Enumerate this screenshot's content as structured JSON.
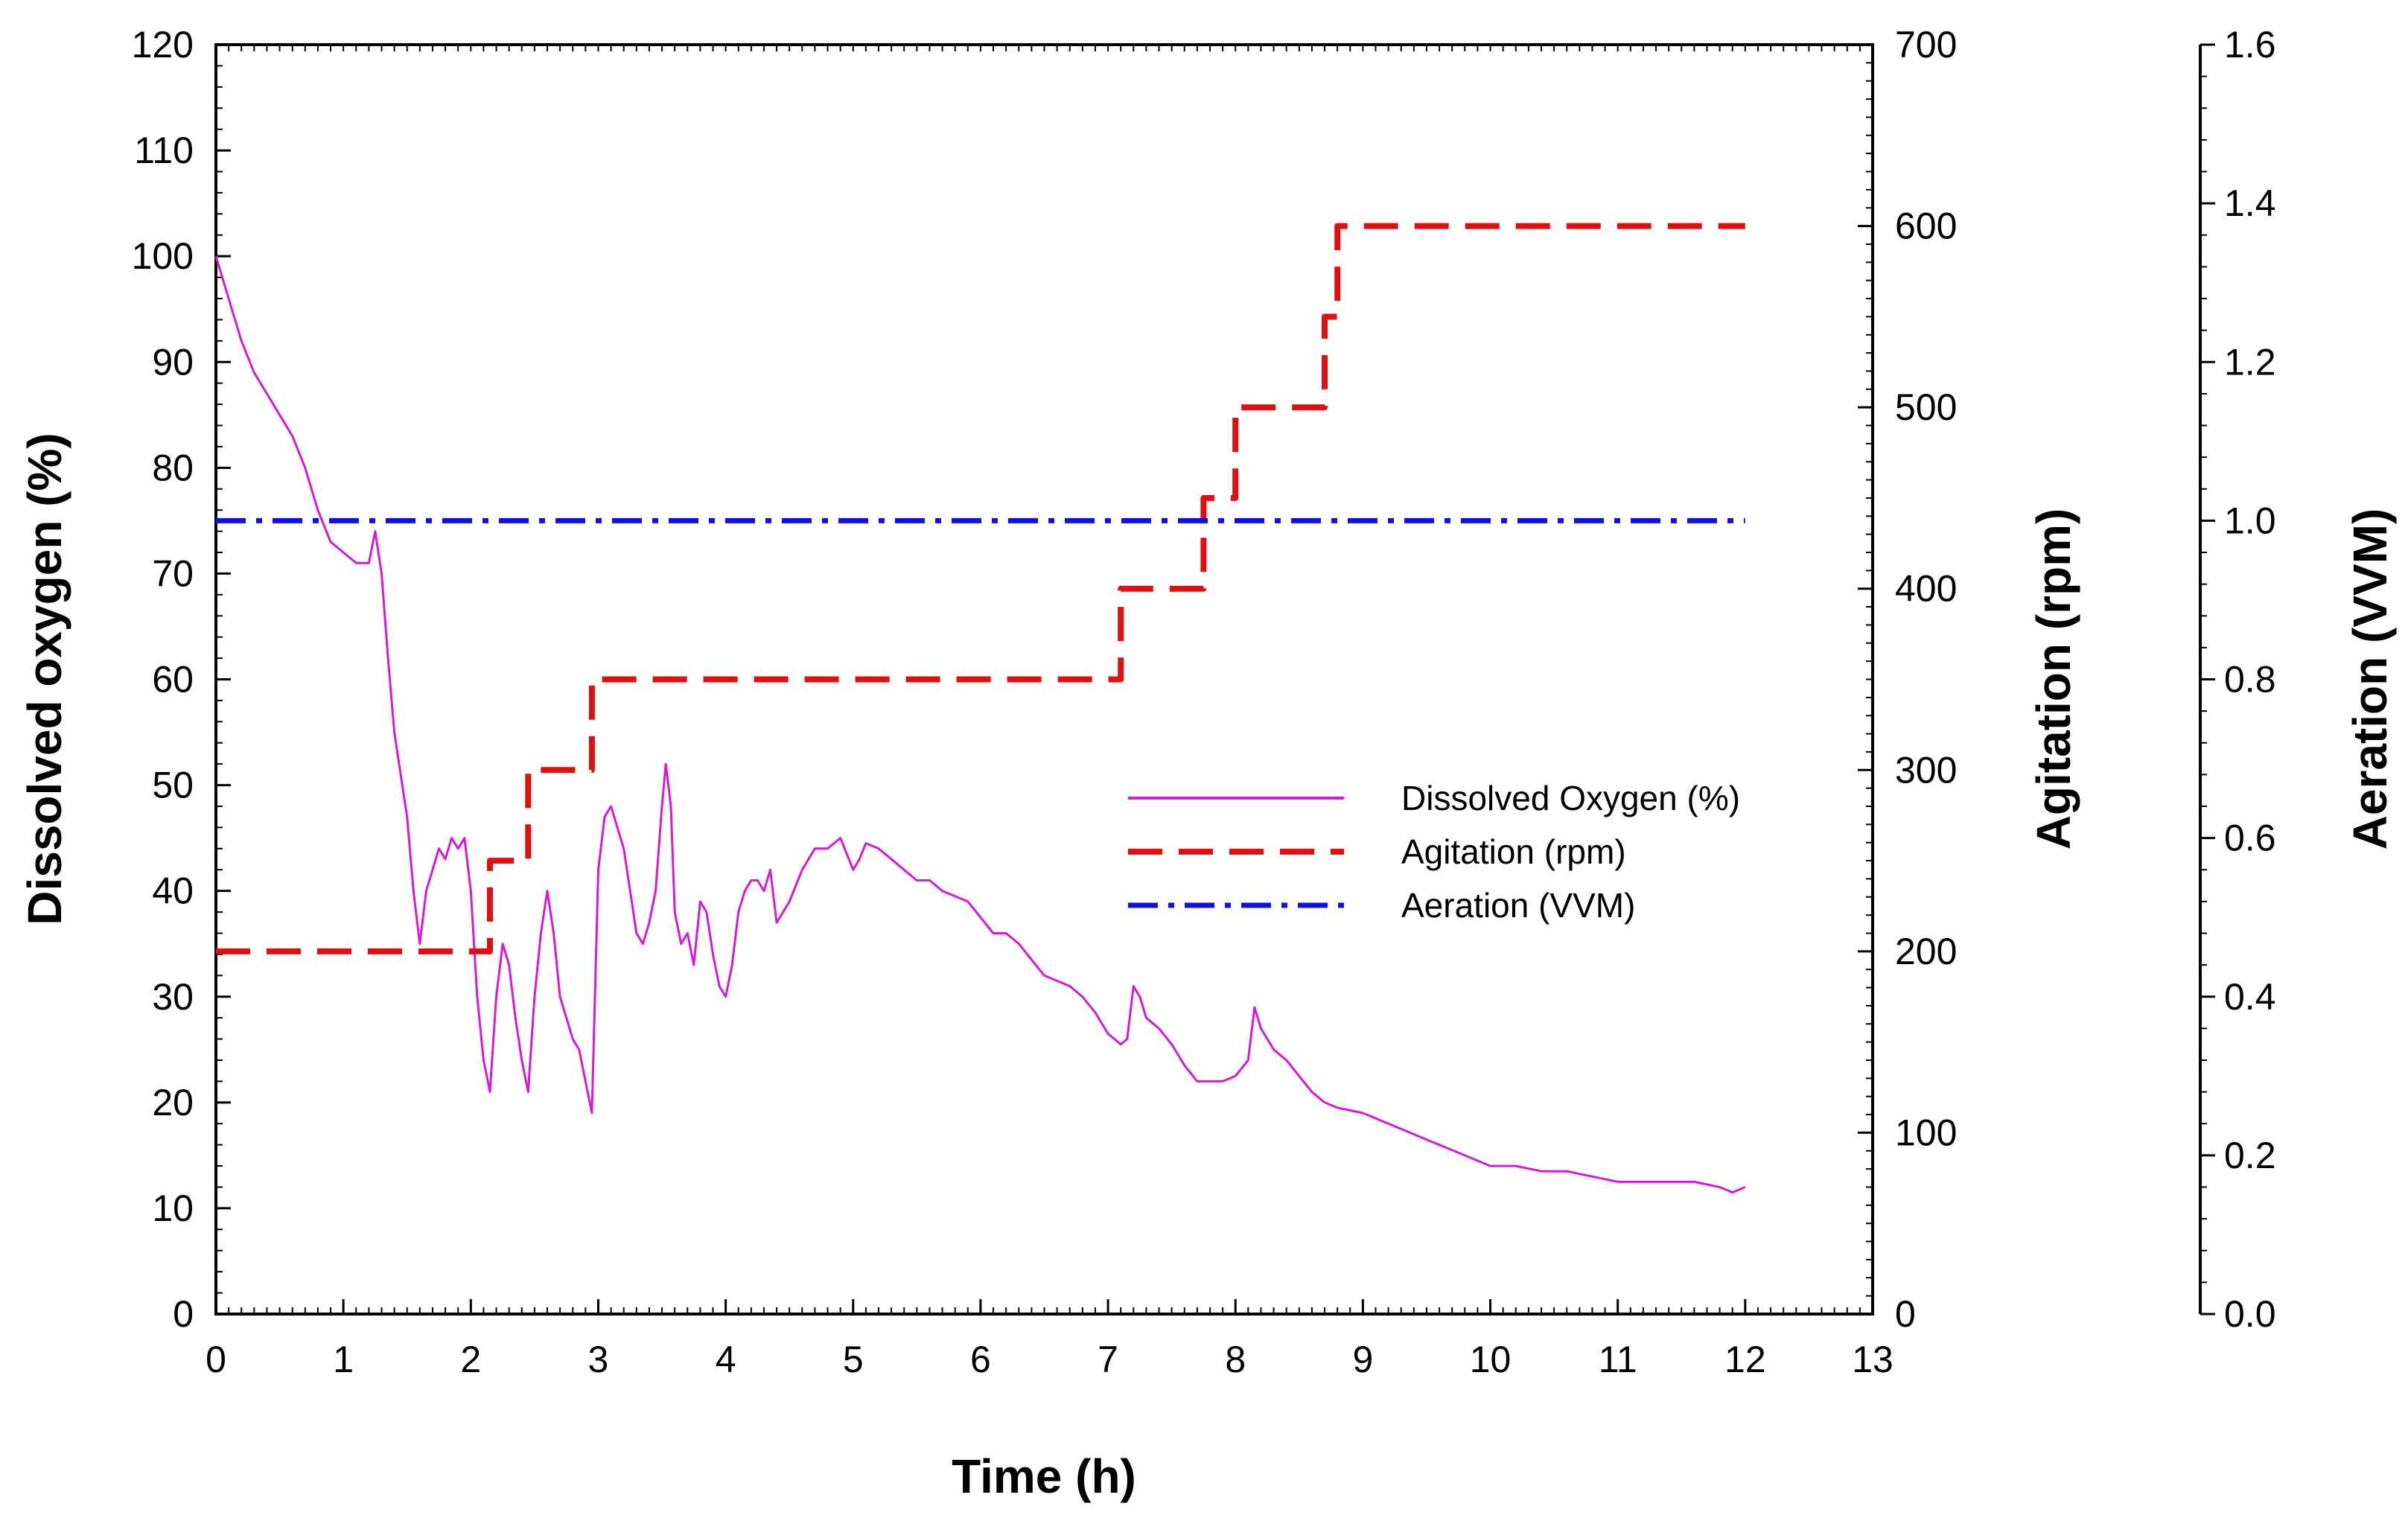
{
  "chart_data": {
    "type": "line",
    "x_axis": {
      "label": "Time (h)",
      "range": [
        0,
        13
      ],
      "ticks": [
        0,
        1,
        2,
        3,
        4,
        5,
        6,
        7,
        8,
        9,
        10,
        11,
        12,
        13
      ]
    },
    "y_axes": {
      "left": {
        "label": "Dissolved oxygen (%)",
        "range": [
          0,
          120
        ],
        "ticks": [
          0,
          10,
          20,
          30,
          40,
          50,
          60,
          70,
          80,
          90,
          100,
          110,
          120
        ]
      },
      "right": {
        "label": "Agitation (rpm)",
        "range": [
          0,
          700
        ],
        "ticks": [
          0,
          100,
          200,
          300,
          400,
          500,
          600,
          700
        ]
      },
      "far_right": {
        "label": "Aeration (VVM)",
        "range": [
          0,
          1.6
        ],
        "ticks": [
          "0.0",
          "0.2",
          "0.4",
          "0.6",
          "0.8",
          "1.0",
          "1.2",
          "1.4",
          "1.6"
        ]
      }
    },
    "legend": {
      "position": "center-right",
      "entries": [
        "Dissolved Oxygen (%)",
        "Agitation (rpm)",
        "Aeration (VVM)"
      ]
    },
    "series": [
      {
        "name": "Dissolved Oxygen (%)",
        "axis": "left",
        "color": "#d61ad6",
        "style": "solid",
        "points": [
          [
            0,
            100
          ],
          [
            0.1,
            96
          ],
          [
            0.2,
            92
          ],
          [
            0.3,
            89
          ],
          [
            0.4,
            87
          ],
          [
            0.5,
            85
          ],
          [
            0.6,
            83
          ],
          [
            0.7,
            80
          ],
          [
            0.8,
            76
          ],
          [
            0.9,
            73
          ],
          [
            1.0,
            72
          ],
          [
            1.1,
            71
          ],
          [
            1.2,
            71
          ],
          [
            1.25,
            74
          ],
          [
            1.3,
            70
          ],
          [
            1.35,
            62
          ],
          [
            1.4,
            55
          ],
          [
            1.5,
            47
          ],
          [
            1.55,
            40
          ],
          [
            1.6,
            35
          ],
          [
            1.65,
            40
          ],
          [
            1.7,
            42
          ],
          [
            1.75,
            44
          ],
          [
            1.8,
            43
          ],
          [
            1.85,
            45
          ],
          [
            1.9,
            44
          ],
          [
            1.95,
            45
          ],
          [
            2.0,
            40
          ],
          [
            2.05,
            30
          ],
          [
            2.1,
            24
          ],
          [
            2.15,
            21
          ],
          [
            2.2,
            30
          ],
          [
            2.25,
            35
          ],
          [
            2.3,
            33
          ],
          [
            2.35,
            28
          ],
          [
            2.4,
            24
          ],
          [
            2.45,
            21
          ],
          [
            2.5,
            30
          ],
          [
            2.55,
            36
          ],
          [
            2.6,
            40
          ],
          [
            2.65,
            36
          ],
          [
            2.7,
            30
          ],
          [
            2.75,
            28
          ],
          [
            2.8,
            26
          ],
          [
            2.85,
            25
          ],
          [
            2.9,
            22
          ],
          [
            2.95,
            19
          ],
          [
            3.0,
            42
          ],
          [
            3.05,
            47
          ],
          [
            3.1,
            48
          ],
          [
            3.15,
            46
          ],
          [
            3.2,
            44
          ],
          [
            3.25,
            40
          ],
          [
            3.3,
            36
          ],
          [
            3.35,
            35
          ],
          [
            3.4,
            37
          ],
          [
            3.45,
            40
          ],
          [
            3.5,
            48
          ],
          [
            3.53,
            52
          ],
          [
            3.57,
            48
          ],
          [
            3.6,
            38
          ],
          [
            3.65,
            35
          ],
          [
            3.7,
            36
          ],
          [
            3.75,
            33
          ],
          [
            3.8,
            39
          ],
          [
            3.85,
            38
          ],
          [
            3.9,
            34
          ],
          [
            3.95,
            31
          ],
          [
            4.0,
            30
          ],
          [
            4.05,
            33
          ],
          [
            4.1,
            38
          ],
          [
            4.15,
            40
          ],
          [
            4.2,
            41
          ],
          [
            4.25,
            41
          ],
          [
            4.3,
            40
          ],
          [
            4.35,
            42
          ],
          [
            4.4,
            37
          ],
          [
            4.5,
            39
          ],
          [
            4.6,
            42
          ],
          [
            4.7,
            44
          ],
          [
            4.8,
            44
          ],
          [
            4.9,
            45
          ],
          [
            5.0,
            42
          ],
          [
            5.05,
            43
          ],
          [
            5.1,
            44.5
          ],
          [
            5.2,
            44
          ],
          [
            5.3,
            43
          ],
          [
            5.4,
            42
          ],
          [
            5.5,
            41
          ],
          [
            5.6,
            41
          ],
          [
            5.7,
            40
          ],
          [
            5.8,
            39.5
          ],
          [
            5.9,
            39
          ],
          [
            6.0,
            37.5
          ],
          [
            6.1,
            36
          ],
          [
            6.2,
            36
          ],
          [
            6.3,
            35
          ],
          [
            6.4,
            33.5
          ],
          [
            6.5,
            32
          ],
          [
            6.6,
            31.5
          ],
          [
            6.7,
            31
          ],
          [
            6.8,
            30
          ],
          [
            6.9,
            28.5
          ],
          [
            7.0,
            26.5
          ],
          [
            7.1,
            25.5
          ],
          [
            7.15,
            26
          ],
          [
            7.2,
            31
          ],
          [
            7.25,
            30
          ],
          [
            7.3,
            28
          ],
          [
            7.4,
            27
          ],
          [
            7.5,
            25.5
          ],
          [
            7.6,
            23.5
          ],
          [
            7.7,
            22
          ],
          [
            7.8,
            22
          ],
          [
            7.9,
            22
          ],
          [
            8.0,
            22.5
          ],
          [
            8.1,
            24
          ],
          [
            8.15,
            29
          ],
          [
            8.2,
            27
          ],
          [
            8.3,
            25
          ],
          [
            8.4,
            24
          ],
          [
            8.5,
            22.5
          ],
          [
            8.6,
            21
          ],
          [
            8.7,
            20
          ],
          [
            8.8,
            19.5
          ],
          [
            9.0,
            19
          ],
          [
            9.2,
            18
          ],
          [
            9.4,
            17
          ],
          [
            9.6,
            16
          ],
          [
            9.8,
            15
          ],
          [
            10.0,
            14
          ],
          [
            10.2,
            14
          ],
          [
            10.4,
            13.5
          ],
          [
            10.6,
            13.5
          ],
          [
            10.8,
            13
          ],
          [
            11.0,
            12.5
          ],
          [
            11.2,
            12.5
          ],
          [
            11.4,
            12.5
          ],
          [
            11.6,
            12.5
          ],
          [
            11.8,
            12
          ],
          [
            11.9,
            11.5
          ],
          [
            12.0,
            12
          ]
        ]
      },
      {
        "name": "Agitation (rpm)",
        "axis": "right",
        "color": "#e01010",
        "style": "dashed",
        "points": [
          [
            0,
            200
          ],
          [
            2.15,
            200
          ],
          [
            2.15,
            250
          ],
          [
            2.45,
            250
          ],
          [
            2.45,
            300
          ],
          [
            2.95,
            300
          ],
          [
            2.95,
            350
          ],
          [
            7.1,
            350
          ],
          [
            7.1,
            400
          ],
          [
            7.75,
            400
          ],
          [
            7.75,
            450
          ],
          [
            8.0,
            450
          ],
          [
            8.0,
            500
          ],
          [
            8.7,
            500
          ],
          [
            8.7,
            550
          ],
          [
            8.8,
            550
          ],
          [
            8.8,
            600
          ],
          [
            12.0,
            600
          ]
        ]
      },
      {
        "name": "Aeration (VVM)",
        "axis": "far_right",
        "color": "#1010e0",
        "style": "dash-dot",
        "points": [
          [
            0,
            1.0
          ],
          [
            12.0,
            1.0
          ]
        ]
      }
    ]
  }
}
